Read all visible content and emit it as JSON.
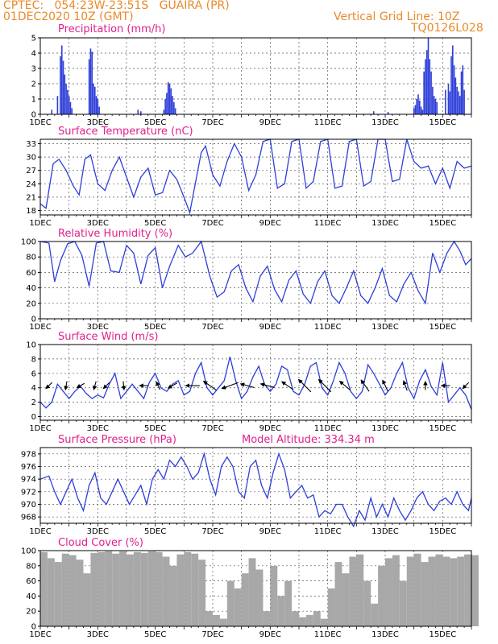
{
  "header": {
    "line1": "CPTEC:   054:23W-23:51S   GUAIRA (PR)",
    "line2": "01DEC2020 10Z (GMT)",
    "right1": "Vertical Grid Line: 10Z",
    "right2": "TQ0126L028"
  },
  "colors": {
    "header": "#e88a2a",
    "title": "#e0208c",
    "line": "#2e3fd8",
    "cloud": "#a8a8a8",
    "arrow": "#000000"
  },
  "chart_data": [
    {
      "type": "bar",
      "title": "Precipitation (mm/h)",
      "xlabel": "",
      "ylabel": "",
      "ylim": [
        0,
        5
      ],
      "yticks": [
        0,
        1,
        2,
        3,
        4,
        5
      ],
      "xlim": [
        1,
        16
      ],
      "xticks": [
        "1DEC",
        "3DEC",
        "5DEC",
        "7DEC",
        "9DEC",
        "11DEC",
        "13DEC",
        "15DEC"
      ],
      "grid": true,
      "x": [
        1.4,
        1.6,
        1.7,
        1.75,
        1.8,
        1.85,
        1.9,
        1.95,
        2.0,
        2.05,
        2.1,
        2.7,
        2.75,
        2.8,
        2.85,
        2.9,
        2.95,
        3.0,
        3.05,
        4.4,
        4.5,
        5.3,
        5.35,
        5.4,
        5.45,
        5.5,
        5.55,
        5.6,
        5.65,
        5.7,
        12.6,
        13.1,
        14.0,
        14.05,
        14.1,
        14.15,
        14.2,
        14.25,
        14.3,
        14.35,
        14.4,
        14.45,
        14.5,
        14.55,
        14.6,
        14.65,
        14.7,
        14.75,
        14.8,
        15.1,
        15.2,
        15.25,
        15.3,
        15.35,
        15.4,
        15.45,
        15.5,
        15.55,
        15.6,
        15.65,
        15.7,
        15.75
      ],
      "values": [
        0.3,
        1.2,
        3.8,
        4.5,
        3.5,
        2.6,
        2.0,
        1.6,
        1.2,
        0.8,
        0.4,
        3.6,
        4.3,
        4.1,
        2.0,
        1.8,
        1.2,
        1.0,
        0.5,
        0.3,
        0.2,
        0.3,
        1.0,
        1.4,
        2.1,
        2.0,
        1.7,
        1.2,
        0.8,
        0.4,
        0.2,
        0.15,
        0.4,
        0.6,
        1.0,
        1.3,
        0.9,
        0.5,
        0.3,
        2.8,
        3.6,
        4.2,
        5.0,
        3.6,
        2.8,
        1.8,
        1.2,
        1.0,
        0.8,
        1.6,
        2.0,
        1.5,
        3.8,
        4.5,
        3.2,
        2.4,
        1.8,
        1.5,
        1.2,
        2.8,
        3.2,
        1.6
      ]
    },
    {
      "type": "line",
      "title": "Surface Temperature (nC)",
      "xlabel": "",
      "ylabel": "",
      "ylim": [
        17,
        34
      ],
      "yticks": [
        18,
        21,
        24,
        27,
        30,
        33
      ],
      "xlim": [
        1,
        16
      ],
      "xticks": [
        "1DEC",
        "3DEC",
        "5DEC",
        "7DEC",
        "9DEC",
        "11DEC",
        "13DEC",
        "15DEC"
      ],
      "grid": true,
      "x": [
        1.0,
        1.2,
        1.45,
        1.65,
        1.9,
        2.15,
        2.35,
        2.55,
        2.75,
        3.0,
        3.25,
        3.5,
        3.75,
        4.0,
        4.25,
        4.5,
        4.75,
        5.0,
        5.25,
        5.5,
        5.75,
        6.0,
        6.2,
        6.45,
        6.6,
        6.75,
        7.0,
        7.25,
        7.5,
        7.75,
        8.0,
        8.25,
        8.5,
        8.75,
        9.0,
        9.25,
        9.5,
        9.75,
        10.0,
        10.25,
        10.5,
        10.75,
        11.0,
        11.25,
        11.5,
        11.75,
        12.0,
        12.25,
        12.5,
        12.75,
        13.0,
        13.25,
        13.5,
        13.75,
        14.0,
        14.25,
        14.5,
        14.75,
        15.0,
        15.25,
        15.5,
        15.75,
        16.0
      ],
      "values": [
        19.5,
        18.5,
        28.5,
        29.5,
        27,
        23.5,
        21.5,
        29.5,
        30.5,
        24,
        22.5,
        27,
        30,
        25.5,
        21,
        25.5,
        27.5,
        21.5,
        22,
        27,
        25,
        21,
        17.5,
        26,
        31,
        32.5,
        26,
        23.5,
        29,
        33,
        30,
        22.5,
        26,
        33.5,
        34,
        23,
        24,
        33.5,
        34,
        23,
        24.5,
        33.5,
        34,
        23,
        23.5,
        33.5,
        34,
        23.5,
        24.5,
        34,
        34,
        24.5,
        25,
        34,
        29,
        27.5,
        28,
        24,
        27.5,
        23,
        29,
        27.5,
        28
      ]
    },
    {
      "type": "line",
      "title": "Relative Humidity (%)",
      "xlabel": "",
      "ylabel": "",
      "ylim": [
        0,
        100
      ],
      "yticks": [
        0,
        20,
        40,
        60,
        80,
        100
      ],
      "xlim": [
        1,
        16
      ],
      "xticks": [
        "1DEC",
        "3DEC",
        "5DEC",
        "7DEC",
        "9DEC",
        "11DEC",
        "13DEC",
        "15DEC"
      ],
      "grid": true,
      "x": [
        1.0,
        1.3,
        1.5,
        1.7,
        1.95,
        2.2,
        2.45,
        2.7,
        2.95,
        3.2,
        3.45,
        3.75,
        4.0,
        4.25,
        4.5,
        4.75,
        5.0,
        5.25,
        5.5,
        5.8,
        6.05,
        6.3,
        6.6,
        6.9,
        7.15,
        7.4,
        7.65,
        7.9,
        8.15,
        8.4,
        8.65,
        8.9,
        9.15,
        9.4,
        9.65,
        9.9,
        10.15,
        10.4,
        10.65,
        10.9,
        11.15,
        11.4,
        11.65,
        11.9,
        12.15,
        12.4,
        12.65,
        12.9,
        13.15,
        13.4,
        13.65,
        13.9,
        14.15,
        14.4,
        14.65,
        14.9,
        15.15,
        15.4,
        15.6,
        15.8,
        16.0
      ],
      "values": [
        100,
        98,
        48,
        75,
        97,
        100,
        82,
        42,
        98,
        100,
        62,
        60,
        95,
        85,
        45,
        82,
        92,
        40,
        68,
        95,
        80,
        85,
        100,
        55,
        28,
        35,
        62,
        70,
        40,
        22,
        55,
        68,
        38,
        22,
        50,
        62,
        32,
        20,
        48,
        62,
        30,
        20,
        40,
        62,
        30,
        20,
        40,
        65,
        30,
        22,
        45,
        60,
        36,
        20,
        85,
        60,
        85,
        100,
        88,
        70,
        78
      ]
    },
    {
      "type": "line",
      "title": "Surface Wind (m/s)",
      "xlabel": "",
      "ylabel": "",
      "ylim": [
        -0.5,
        10
      ],
      "yticks": [
        0,
        2,
        4,
        6,
        8,
        10
      ],
      "xlim": [
        1,
        16
      ],
      "xticks": [
        "1DEC",
        "3DEC",
        "5DEC",
        "7DEC",
        "9DEC",
        "11DEC",
        "13DEC",
        "15DEC"
      ],
      "grid": true,
      "x": [
        1.0,
        1.2,
        1.4,
        1.6,
        1.8,
        2.0,
        2.2,
        2.4,
        2.6,
        2.8,
        3.0,
        3.2,
        3.4,
        3.6,
        3.8,
        4.0,
        4.2,
        4.4,
        4.6,
        4.8,
        5.0,
        5.2,
        5.4,
        5.6,
        5.8,
        6.0,
        6.2,
        6.4,
        6.6,
        6.8,
        7.0,
        7.2,
        7.4,
        7.6,
        7.8,
        8.0,
        8.2,
        8.4,
        8.6,
        8.8,
        9.0,
        9.2,
        9.4,
        9.6,
        9.8,
        10.0,
        10.2,
        10.4,
        10.6,
        10.8,
        11.0,
        11.2,
        11.4,
        11.6,
        11.8,
        12.0,
        12.2,
        12.4,
        12.6,
        12.8,
        13.0,
        13.2,
        13.4,
        13.6,
        13.8,
        14.0,
        14.2,
        14.4,
        14.6,
        14.8,
        15.0,
        15.2,
        15.4,
        15.6,
        15.8,
        16.0
      ],
      "values": [
        2,
        1.2,
        2,
        4.5,
        3.5,
        2.5,
        3.5,
        4.2,
        3.2,
        2.5,
        3,
        2.6,
        4.5,
        6,
        2.5,
        3.5,
        4.5,
        3.5,
        2.5,
        4.8,
        6,
        4,
        3.5,
        4.5,
        5,
        3,
        3.5,
        6,
        7.5,
        4,
        3,
        4,
        5,
        8.3,
        5,
        2.5,
        3.5,
        5.5,
        7,
        4.5,
        3.5,
        4.5,
        7,
        6.5,
        3.5,
        3,
        4.5,
        7,
        7.5,
        4,
        3,
        5,
        7.5,
        6,
        3.5,
        2.5,
        3.5,
        7.2,
        6,
        4.5,
        3,
        4,
        6,
        7.5,
        4,
        2.5,
        5,
        6.5,
        4.2,
        3,
        7.5,
        2,
        3,
        4,
        3,
        1
      ]
    },
    {
      "type": "line",
      "title": "Surface Pressure (hPa)",
      "annotation": "Model Altitude: 334.34 m",
      "xlabel": "",
      "ylabel": "",
      "ylim": [
        967,
        979
      ],
      "yticks": [
        968,
        970,
        972,
        974,
        976,
        978
      ],
      "xlim": [
        1,
        16
      ],
      "xticks": [
        "1DEC",
        "3DEC",
        "5DEC",
        "7DEC",
        "9DEC",
        "11DEC",
        "13DEC",
        "15DEC"
      ],
      "grid": true,
      "x": [
        1.0,
        1.3,
        1.5,
        1.7,
        1.9,
        2.1,
        2.3,
        2.5,
        2.7,
        2.9,
        3.1,
        3.3,
        3.5,
        3.7,
        3.9,
        4.1,
        4.3,
        4.5,
        4.7,
        4.9,
        5.1,
        5.3,
        5.5,
        5.7,
        5.9,
        6.1,
        6.3,
        6.5,
        6.7,
        6.9,
        7.1,
        7.3,
        7.5,
        7.7,
        7.9,
        8.1,
        8.3,
        8.5,
        8.7,
        8.9,
        9.1,
        9.3,
        9.5,
        9.7,
        9.9,
        10.1,
        10.3,
        10.5,
        10.7,
        10.9,
        11.1,
        11.3,
        11.5,
        11.7,
        11.9,
        12.1,
        12.3,
        12.5,
        12.7,
        12.9,
        13.1,
        13.3,
        13.5,
        13.7,
        13.9,
        14.1,
        14.3,
        14.5,
        14.7,
        14.9,
        15.1,
        15.3,
        15.5,
        15.7,
        15.9,
        16.0
      ],
      "values": [
        974,
        974.5,
        972,
        970,
        972,
        974,
        971,
        969,
        973,
        975,
        971,
        970,
        972,
        974,
        972,
        970,
        971.5,
        973,
        970,
        974,
        975.5,
        974,
        977,
        976,
        977.5,
        976,
        974,
        975,
        978,
        974,
        971.5,
        976,
        977.5,
        976,
        972,
        971,
        976,
        977,
        973,
        971,
        975,
        978,
        975.5,
        971,
        972,
        973,
        971,
        971.5,
        968,
        969,
        968.5,
        970,
        970,
        968,
        966.5,
        969,
        967.5,
        971,
        968,
        970,
        968,
        971,
        969,
        967.5,
        969,
        971,
        972,
        970,
        969,
        970.5,
        971,
        970,
        972,
        970,
        969,
        971
      ]
    },
    {
      "type": "bar",
      "title": "Cloud Cover (%)",
      "xlabel": "",
      "ylabel": "",
      "ylim": [
        0,
        100
      ],
      "yticks": [
        0,
        20,
        40,
        60,
        80,
        100
      ],
      "xlim": [
        1,
        16
      ],
      "xticks": [
        "1DEC",
        "3DEC",
        "5DEC",
        "7DEC",
        "9DEC",
        "11DEC",
        "13DEC",
        "15DEC"
      ],
      "grid": true,
      "x": [
        1.0,
        1.25,
        1.5,
        1.75,
        2.0,
        2.25,
        2.5,
        2.75,
        3.0,
        3.25,
        3.5,
        3.75,
        4.0,
        4.25,
        4.5,
        4.75,
        5.0,
        5.25,
        5.5,
        5.75,
        6.0,
        6.25,
        6.5,
        6.75,
        7.0,
        7.25,
        7.5,
        7.75,
        8.0,
        8.25,
        8.5,
        8.75,
        9.0,
        9.25,
        9.5,
        9.75,
        10.0,
        10.25,
        10.5,
        10.75,
        11.0,
        11.25,
        11.5,
        11.75,
        12.0,
        12.25,
        12.5,
        12.75,
        13.0,
        13.25,
        13.5,
        13.75,
        14.0,
        14.25,
        14.5,
        14.75,
        15.0,
        15.25,
        15.5,
        15.75,
        16.0
      ],
      "values": [
        98,
        90,
        85,
        96,
        94,
        88,
        70,
        97,
        98,
        99,
        96,
        99,
        95,
        98,
        97,
        99,
        98,
        92,
        80,
        95,
        98,
        96,
        88,
        20,
        15,
        10,
        60,
        50,
        70,
        90,
        75,
        20,
        80,
        40,
        60,
        20,
        12,
        15,
        20,
        10,
        50,
        85,
        70,
        92,
        95,
        60,
        30,
        80,
        90,
        94,
        60,
        92,
        96,
        85,
        92,
        95,
        92,
        90,
        92,
        95,
        94
      ]
    }
  ],
  "wind_arrows": [
    {
      "x": 1.3,
      "angle": 225
    },
    {
      "x": 1.9,
      "angle": 260
    },
    {
      "x": 2.4,
      "angle": 210
    },
    {
      "x": 2.9,
      "angle": 255
    },
    {
      "x": 3.3,
      "angle": 225
    },
    {
      "x": 3.9,
      "angle": 275
    },
    {
      "x": 4.6,
      "angle": 180
    },
    {
      "x": 5.1,
      "angle": 115
    },
    {
      "x": 5.6,
      "angle": 210
    },
    {
      "x": 6.3,
      "angle": 180
    },
    {
      "x": 6.9,
      "angle": 145
    },
    {
      "x": 7.6,
      "angle": 200
    },
    {
      "x": 8.2,
      "angle": 165
    },
    {
      "x": 8.9,
      "angle": 165
    },
    {
      "x": 9.6,
      "angle": 145
    },
    {
      "x": 10.2,
      "angle": 135
    },
    {
      "x": 10.9,
      "angle": 135
    },
    {
      "x": 11.6,
      "angle": 140
    },
    {
      "x": 12.3,
      "angle": 125
    },
    {
      "x": 13.0,
      "angle": 115
    },
    {
      "x": 13.7,
      "angle": 110
    },
    {
      "x": 14.4,
      "angle": 90
    },
    {
      "x": 15.1,
      "angle": 180
    },
    {
      "x": 15.8,
      "angle": 225
    }
  ],
  "wind_arrow_lengths": [
    1,
    1,
    1,
    1,
    1,
    1,
    1,
    1,
    1.2,
    1.6,
    1.8,
    2,
    1.6,
    1.6,
    1.6,
    2,
    2,
    1.6,
    1.6,
    1.4,
    1.2,
    1,
    1,
    1
  ]
}
